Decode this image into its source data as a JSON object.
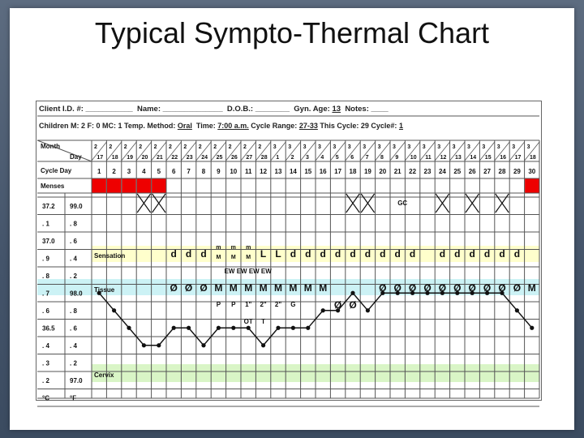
{
  "title": "Typical Sympto-Thermal Chart",
  "header": {
    "client_label": "Client I.D. #:",
    "client_value": "___________",
    "name_label": "Name:",
    "name_value": "______________",
    "dob_label": "D.O.B.:",
    "dob_value": "________",
    "gyn_age_label": "Gyn. Age:",
    "gyn_age_value": "13",
    "notes_label": "Notes:",
    "notes_value": "____",
    "children_text": "Children M: 2 F: 0 MC: 1 Temp. Method:",
    "temp_method": "Oral",
    "time_label": "Time:",
    "time_value": "7:00 a.m.",
    "cycle_range_label": "Cycle Range:",
    "cycle_range_value": "27-33",
    "this_cycle_label": "This Cycle: 29 Cycle#:",
    "cycle_num": "1"
  },
  "labels": {
    "month": "Month",
    "day": "Day",
    "cycle_day": "Cycle Day",
    "menses": "Menses",
    "sensation": "Sensation",
    "tissue": "Tissue",
    "cervix": "Cervix",
    "deg_c": "°C",
    "deg_f": "°F",
    "gc": "GC"
  },
  "months": [
    "2",
    "2",
    "2",
    "2",
    "2",
    "2",
    "2",
    "2",
    "2",
    "2",
    "2",
    "2",
    "3",
    "3",
    "3",
    "3",
    "3",
    "3",
    "3",
    "3",
    "3",
    "3",
    "3",
    "3",
    "3",
    "3",
    "3",
    "3",
    "3",
    "3"
  ],
  "days": [
    "17",
    "18",
    "19",
    "20",
    "21",
    "22",
    "23",
    "24",
    "25",
    "26",
    "27",
    "28",
    "1",
    "2",
    "3",
    "4",
    "5",
    "6",
    "7",
    "8",
    "9",
    "10",
    "11",
    "12",
    "13",
    "14",
    "15",
    "16",
    "17",
    "18"
  ],
  "cycle_days": [
    "1",
    "2",
    "3",
    "4",
    "5",
    "6",
    "7",
    "8",
    "9",
    "10",
    "11",
    "12",
    "13",
    "14",
    "15",
    "16",
    "17",
    "18",
    "19",
    "20",
    "21",
    "22",
    "23",
    "24",
    "25",
    "26",
    "27",
    "28",
    "29",
    "30"
  ],
  "menses_red": [
    1,
    2,
    3,
    4,
    5,
    30
  ],
  "x_marks": [
    4,
    5,
    18,
    19,
    24,
    26,
    28
  ],
  "temp_c": [
    "37.2",
    ". 1",
    "37.0",
    ". 9",
    ". 8",
    ". 7",
    ". 6",
    "36.5",
    ". 4",
    ". 3",
    ". 2",
    "°C"
  ],
  "temp_f": [
    "99.0",
    ". 8",
    ". 6",
    ". 4",
    ". 2",
    "98.0",
    ". 8",
    ". 6",
    ". 4",
    ". 2",
    "97.0",
    "°F"
  ],
  "sensation": {
    "6": "d",
    "7": "d",
    "8": "d",
    "9": "m",
    "10": "m",
    "11": "m",
    "12": "L",
    "13": "L",
    "14": "d",
    "15": "d",
    "16": "d",
    "17": "d",
    "18": "d",
    "19": "d",
    "20": "d",
    "21": "d",
    "22": "d",
    "24": "d",
    "25": "d",
    "26": "d",
    "27": "d",
    "28": "d",
    "29": "d"
  },
  "sensation_sub": {
    "9": "M",
    "10": "M",
    "11": "M"
  },
  "ew_text": "EW EW EW EW",
  "tissue": {
    "6": "Ø",
    "7": "Ø",
    "8": "Ø",
    "9": "M",
    "10": "M",
    "11": "M",
    "12": "M",
    "13": "M",
    "14": "M",
    "15": "M",
    "16": "M",
    "20": "Ø",
    "21": "Ø",
    "22": "Ø",
    "23": "Ø",
    "24": "Ø",
    "25": "Ø",
    "26": "Ø",
    "27": "Ø",
    "28": "Ø",
    "29": "Ø",
    "30": "M"
  },
  "cervix_row": {
    "9": "P",
    "10": "P",
    "11": "1\"",
    "12": "2\"",
    "13": "2\"",
    "14": "G",
    "17": "Ø",
    "18": "Ø"
  },
  "cervix_row2": {
    "11": "OT",
    "12": "T"
  },
  "temps_f": [
    98.0,
    97.8,
    97.6,
    97.4,
    97.4,
    97.6,
    97.6,
    97.4,
    97.6,
    97.6,
    97.6,
    97.4,
    97.6,
    97.6,
    97.6,
    97.8,
    97.8,
    98.0,
    97.8,
    98.0,
    98.0,
    98.0,
    98.0,
    98.0,
    98.0,
    98.0,
    98.0,
    98.0,
    97.8,
    97.6
  ]
}
